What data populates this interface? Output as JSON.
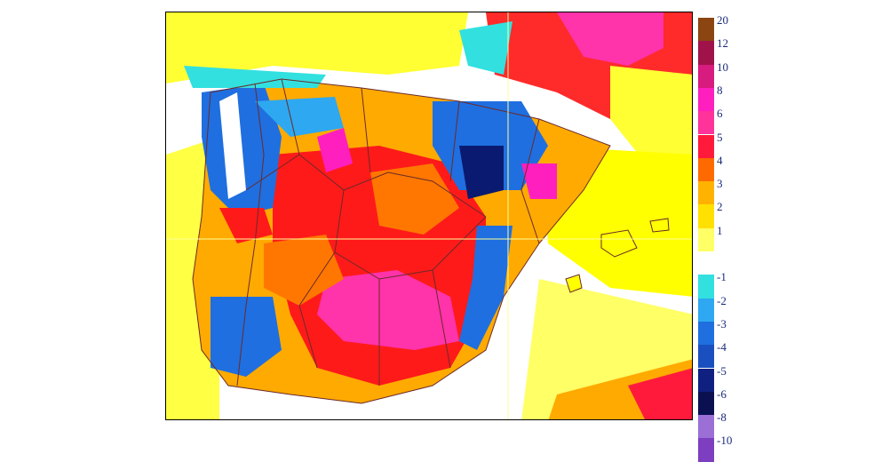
{
  "legend": {
    "entries": [
      {
        "label": "20",
        "color": "#8b4513"
      },
      {
        "label": "12",
        "color": "#a0134a"
      },
      {
        "label": "10",
        "color": "#d81b7e"
      },
      {
        "label": "8",
        "color": "#ff1fbf"
      },
      {
        "label": "6",
        "color": "#ff3399"
      },
      {
        "label": "5",
        "color": "#ff1a3c"
      },
      {
        "label": "4",
        "color": "#ff6a00"
      },
      {
        "label": "3",
        "color": "#ffb300"
      },
      {
        "label": "2",
        "color": "#ffe000"
      },
      {
        "label": "1",
        "color": "#ffff66"
      },
      {
        "label": "",
        "color": "#ffffff"
      },
      {
        "label": "-1",
        "color": "#33e0e0"
      },
      {
        "label": "-2",
        "color": "#2ea8f0"
      },
      {
        "label": "-3",
        "color": "#1f6fe0"
      },
      {
        "label": "-4",
        "color": "#1a4fc0"
      },
      {
        "label": "-5",
        "color": "#102080"
      },
      {
        "label": "-6",
        "color": "#0a1050"
      },
      {
        "label": "-8",
        "color": "#9b6fd6"
      },
      {
        "label": "-10",
        "color": "#7d3fbf"
      }
    ]
  },
  "colors": {
    "yellow": "#ffff00",
    "orange": "#ffaa00",
    "dark_orange": "#ff7700",
    "red": "#ff1a1a",
    "magenta": "#ff33aa",
    "cyan": "#33e0e0",
    "light_blue": "#2ea8f0",
    "blue": "#1f6fe0",
    "dark_blue": "#0a1a70",
    "border": "#6b2a2a"
  }
}
